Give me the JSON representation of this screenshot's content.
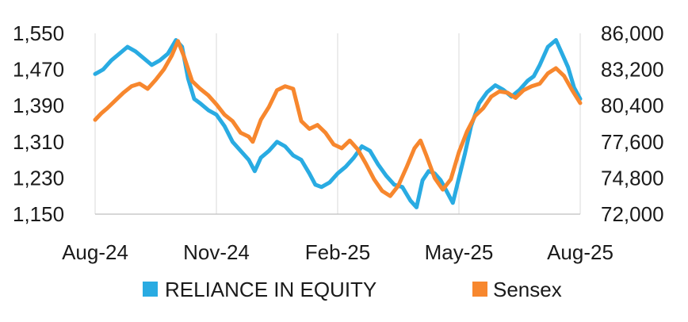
{
  "chart_data": {
    "type": "line",
    "title": "",
    "xlabel": "",
    "ylabel_left": "",
    "ylabel_right": "",
    "x_tick_labels": [
      "Aug-24",
      "Nov-24",
      "Feb-25",
      "May-25",
      "Aug-25"
    ],
    "x_range": [
      0,
      12
    ],
    "x_tick_positions": [
      0,
      3,
      6,
      9,
      12
    ],
    "y_left_range": [
      1150,
      1550
    ],
    "y_left_ticks": [
      1150,
      1230,
      1310,
      1390,
      1470,
      1550
    ],
    "y_left_tick_labels": [
      "1,150",
      "1,230",
      "1,310",
      "1,390",
      "1,470",
      "1,550"
    ],
    "y_right_range": [
      72000,
      86000
    ],
    "y_right_ticks": [
      72000,
      74800,
      77600,
      80400,
      83200,
      86000
    ],
    "y_right_tick_labels": [
      "72,000",
      "74,800",
      "77,600",
      "80,400",
      "83,200",
      "86,000"
    ],
    "grid": "vertical",
    "legend_position": "bottom",
    "series": [
      {
        "name": "RELIANCE IN EQUITY",
        "axis": "left",
        "color": "#29ABE2",
        "points": [
          [
            0.0,
            1460
          ],
          [
            0.2,
            1470
          ],
          [
            0.4,
            1490
          ],
          [
            0.6,
            1505
          ],
          [
            0.8,
            1520
          ],
          [
            1.0,
            1510
          ],
          [
            1.2,
            1495
          ],
          [
            1.4,
            1480
          ],
          [
            1.6,
            1490
          ],
          [
            1.8,
            1505
          ],
          [
            2.0,
            1535
          ],
          [
            2.15,
            1520
          ],
          [
            2.3,
            1450
          ],
          [
            2.45,
            1405
          ],
          [
            2.6,
            1395
          ],
          [
            2.8,
            1380
          ],
          [
            3.0,
            1370
          ],
          [
            3.2,
            1345
          ],
          [
            3.4,
            1310
          ],
          [
            3.6,
            1290
          ],
          [
            3.8,
            1270
          ],
          [
            3.95,
            1245
          ],
          [
            4.1,
            1275
          ],
          [
            4.3,
            1290
          ],
          [
            4.5,
            1310
          ],
          [
            4.7,
            1300
          ],
          [
            4.9,
            1280
          ],
          [
            5.1,
            1270
          ],
          [
            5.3,
            1240
          ],
          [
            5.45,
            1215
          ],
          [
            5.6,
            1210
          ],
          [
            5.8,
            1220
          ],
          [
            6.0,
            1240
          ],
          [
            6.2,
            1255
          ],
          [
            6.4,
            1275
          ],
          [
            6.6,
            1300
          ],
          [
            6.8,
            1290
          ],
          [
            7.0,
            1260
          ],
          [
            7.2,
            1235
          ],
          [
            7.4,
            1215
          ],
          [
            7.6,
            1210
          ],
          [
            7.8,
            1180
          ],
          [
            7.95,
            1165
          ],
          [
            8.1,
            1225
          ],
          [
            8.25,
            1245
          ],
          [
            8.4,
            1240
          ],
          [
            8.55,
            1225
          ],
          [
            8.7,
            1200
          ],
          [
            8.85,
            1175
          ],
          [
            9.0,
            1230
          ],
          [
            9.15,
            1285
          ],
          [
            9.3,
            1345
          ],
          [
            9.5,
            1395
          ],
          [
            9.7,
            1420
          ],
          [
            9.9,
            1435
          ],
          [
            10.1,
            1425
          ],
          [
            10.3,
            1410
          ],
          [
            10.5,
            1425
          ],
          [
            10.7,
            1445
          ],
          [
            10.85,
            1455
          ],
          [
            11.0,
            1480
          ],
          [
            11.2,
            1520
          ],
          [
            11.4,
            1535
          ],
          [
            11.55,
            1505
          ],
          [
            11.7,
            1475
          ],
          [
            11.85,
            1430
          ],
          [
            12.0,
            1405
          ]
        ]
      },
      {
        "name": "Sensex",
        "axis": "right",
        "color": "#F7872E",
        "points": [
          [
            0.0,
            79300
          ],
          [
            0.15,
            79800
          ],
          [
            0.3,
            80200
          ],
          [
            0.5,
            80800
          ],
          [
            0.7,
            81400
          ],
          [
            0.9,
            81900
          ],
          [
            1.1,
            82100
          ],
          [
            1.3,
            81700
          ],
          [
            1.5,
            82400
          ],
          [
            1.7,
            83200
          ],
          [
            1.9,
            84300
          ],
          [
            2.05,
            85400
          ],
          [
            2.2,
            84200
          ],
          [
            2.4,
            82300
          ],
          [
            2.6,
            81700
          ],
          [
            2.8,
            81200
          ],
          [
            3.0,
            80500
          ],
          [
            3.2,
            79700
          ],
          [
            3.4,
            79200
          ],
          [
            3.6,
            78300
          ],
          [
            3.8,
            78000
          ],
          [
            3.9,
            77600
          ],
          [
            4.1,
            79300
          ],
          [
            4.3,
            80300
          ],
          [
            4.5,
            81600
          ],
          [
            4.7,
            81900
          ],
          [
            4.9,
            81700
          ],
          [
            5.1,
            79200
          ],
          [
            5.3,
            78600
          ],
          [
            5.5,
            78900
          ],
          [
            5.7,
            78300
          ],
          [
            5.9,
            77400
          ],
          [
            6.1,
            77100
          ],
          [
            6.3,
            77700
          ],
          [
            6.5,
            77000
          ],
          [
            6.7,
            75900
          ],
          [
            6.9,
            74700
          ],
          [
            7.1,
            73800
          ],
          [
            7.3,
            73400
          ],
          [
            7.5,
            74200
          ],
          [
            7.7,
            75600
          ],
          [
            7.9,
            77100
          ],
          [
            8.05,
            77700
          ],
          [
            8.2,
            76500
          ],
          [
            8.4,
            74800
          ],
          [
            8.6,
            73900
          ],
          [
            8.8,
            74700
          ],
          [
            9.0,
            76800
          ],
          [
            9.2,
            78400
          ],
          [
            9.4,
            79600
          ],
          [
            9.6,
            80200
          ],
          [
            9.8,
            81100
          ],
          [
            10.0,
            81500
          ],
          [
            10.2,
            81400
          ],
          [
            10.4,
            81000
          ],
          [
            10.6,
            81600
          ],
          [
            10.8,
            81900
          ],
          [
            11.0,
            82100
          ],
          [
            11.2,
            82900
          ],
          [
            11.4,
            83300
          ],
          [
            11.6,
            82700
          ],
          [
            11.8,
            81600
          ],
          [
            12.0,
            80600
          ]
        ]
      }
    ]
  }
}
